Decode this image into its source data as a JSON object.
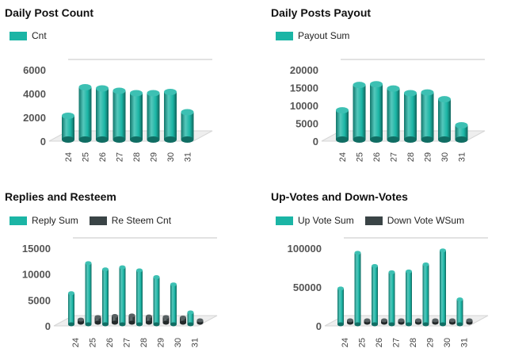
{
  "chart_data": [
    {
      "type": "bar",
      "title": "Daily Post Count",
      "categories": [
        "24",
        "25",
        "26",
        "27",
        "28",
        "29",
        "30",
        "31"
      ],
      "series": [
        {
          "name": "Cnt",
          "values": [
            2000,
            4400,
            4300,
            4100,
            3900,
            3900,
            4000,
            2300
          ],
          "color": "#1bb5a5"
        }
      ],
      "yticks": [
        0,
        2000,
        4000,
        6000
      ],
      "ylim": [
        0,
        6000
      ],
      "legend": "top-left",
      "grid": false
    },
    {
      "type": "bar",
      "title": "Daily Posts Payout",
      "categories": [
        "24",
        "25",
        "26",
        "27",
        "28",
        "29",
        "30",
        "31"
      ],
      "series": [
        {
          "name": "Payout Sum",
          "values": [
            8200,
            15300,
            15500,
            14300,
            13000,
            13200,
            11300,
            4000
          ],
          "color": "#1bb5a5"
        }
      ],
      "yticks": [
        0,
        5000,
        10000,
        15000,
        20000
      ],
      "ylim": [
        0,
        20000
      ],
      "legend": "top-left",
      "grid": false
    },
    {
      "type": "bar",
      "title": "Replies and Resteem",
      "categories": [
        "24",
        "25",
        "26",
        "27",
        "28",
        "29",
        "30",
        "31"
      ],
      "series": [
        {
          "name": "Reply Sum",
          "values": [
            6000,
            11800,
            10600,
            11000,
            10400,
            9100,
            7700,
            2300
          ],
          "color": "#1bb5a5"
        },
        {
          "name": "Re Steem Cnt",
          "values": [
            600,
            1100,
            1300,
            1400,
            1200,
            1100,
            1000,
            300
          ],
          "color": "#3a4446"
        }
      ],
      "yticks": [
        0,
        5000,
        10000,
        15000
      ],
      "ylim": [
        0,
        15000
      ],
      "legend": "top-left",
      "grid": false
    },
    {
      "type": "bar",
      "title": "Up-Votes and Down-Votes",
      "categories": [
        "24",
        "25",
        "26",
        "27",
        "28",
        "29",
        "30",
        "31"
      ],
      "series": [
        {
          "name": "Up Vote Sum",
          "values": [
            46000,
            92000,
            75000,
            67000,
            68000,
            77000,
            95000,
            32000
          ],
          "color": "#1bb5a5"
        },
        {
          "name": "Down Vote WSum",
          "values": [
            1000,
            1000,
            1000,
            1000,
            1000,
            1000,
            1000,
            1000
          ],
          "color": "#3a4446"
        }
      ],
      "yticks": [
        0,
        50000,
        100000
      ],
      "ylim": [
        0,
        100000
      ],
      "legend": "top-left",
      "grid": false
    }
  ]
}
